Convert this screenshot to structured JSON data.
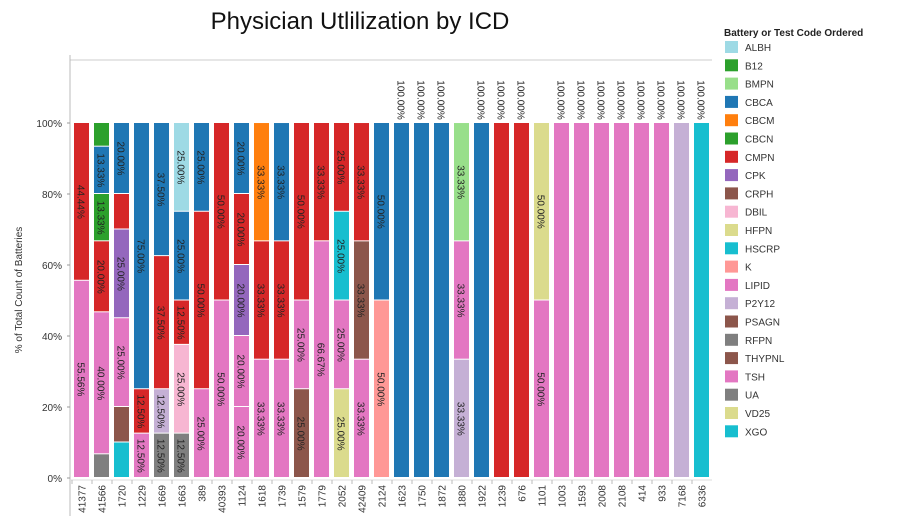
{
  "chart_data": {
    "type": "bar",
    "stacked": true,
    "title": "Physician Utlilization by ICD",
    "xlabel": "",
    "ylabel": "% of Total Count of Batteries",
    "ylim": [
      0,
      100
    ],
    "yticks": [
      "0%",
      "20%",
      "40%",
      "60%",
      "80%",
      "100%"
    ],
    "grid": false,
    "legend": {
      "title": "Battery or Test Code Ordered",
      "placement": "right",
      "items": [
        {
          "code": "ALBH",
          "color": "#9edae5"
        },
        {
          "code": "B12",
          "color": "#2ca02c"
        },
        {
          "code": "BMPN",
          "color": "#98df8a"
        },
        {
          "code": "CBCA",
          "color": "#1f77b4"
        },
        {
          "code": "CBCM",
          "color": "#ff7f0e"
        },
        {
          "code": "CBCN",
          "color": "#2ca02c"
        },
        {
          "code": "CMPN",
          "color": "#d62728"
        },
        {
          "code": "CPK",
          "color": "#9467bd"
        },
        {
          "code": "CRPH",
          "color": "#8c564b"
        },
        {
          "code": "DBIL",
          "color": "#f7b6d2"
        },
        {
          "code": "HFPN",
          "color": "#dbdb8d"
        },
        {
          "code": "HSCRP",
          "color": "#17becf"
        },
        {
          "code": "K",
          "color": "#ff9896"
        },
        {
          "code": "LIPID",
          "color": "#e377c2"
        },
        {
          "code": "P2Y12",
          "color": "#c5b0d5"
        },
        {
          "code": "PSAGN",
          "color": "#8c564b"
        },
        {
          "code": "RFPN",
          "color": "#7f7f7f"
        },
        {
          "code": "THYPNL",
          "color": "#8c564b"
        },
        {
          "code": "TSH",
          "color": "#e377c2"
        },
        {
          "code": "UA",
          "color": "#7f7f7f"
        },
        {
          "code": "VD25",
          "color": "#dbdb8d"
        },
        {
          "code": "XGO",
          "color": "#17becf"
        }
      ]
    },
    "bars": [
      {
        "category": "41377",
        "segments": [
          {
            "code": "TSH",
            "pct": 55.56
          },
          {
            "code": "CMPN",
            "pct": 44.44
          }
        ]
      },
      {
        "category": "41566",
        "segments": [
          {
            "code": "UA",
            "pct": 6.67
          },
          {
            "code": "TSH",
            "pct": 40.0
          },
          {
            "code": "CMPN",
            "pct": 20.0
          },
          {
            "code": "CBCN",
            "pct": 13.33
          },
          {
            "code": "CBCA",
            "pct": 13.33
          },
          {
            "code": "B12",
            "pct": 6.67
          }
        ]
      },
      {
        "category": "1720",
        "segments": [
          {
            "code": "XGO",
            "pct": 10.0
          },
          {
            "code": "THYPNL",
            "pct": 10.0
          },
          {
            "code": "TSH",
            "pct": 25.0
          },
          {
            "code": "CPK",
            "pct": 25.0
          },
          {
            "code": "CMPN",
            "pct": 10.0
          },
          {
            "code": "CBCA",
            "pct": 20.0
          }
        ]
      },
      {
        "category": "1229",
        "segments": [
          {
            "code": "TSH",
            "pct": 12.5
          },
          {
            "code": "CMPN",
            "pct": 12.5
          },
          {
            "code": "CBCA",
            "pct": 75.0
          }
        ]
      },
      {
        "category": "1669",
        "segments": [
          {
            "code": "UA",
            "pct": 12.5
          },
          {
            "code": "P2Y12",
            "pct": 12.5
          },
          {
            "code": "CMPN",
            "pct": 37.5
          },
          {
            "code": "CBCA",
            "pct": 37.5
          }
        ]
      },
      {
        "category": "1663",
        "segments": [
          {
            "code": "UA",
            "pct": 12.5
          },
          {
            "code": "DBIL",
            "pct": 25.0
          },
          {
            "code": "CMPN",
            "pct": 12.5
          },
          {
            "code": "CBCA",
            "pct": 25.0
          },
          {
            "code": "ALBH",
            "pct": 25.0
          }
        ]
      },
      {
        "category": "389",
        "segments": [
          {
            "code": "TSH",
            "pct": 25.0
          },
          {
            "code": "CMPN",
            "pct": 50.0
          },
          {
            "code": "CBCA",
            "pct": 25.0
          }
        ]
      },
      {
        "category": "40393",
        "segments": [
          {
            "code": "TSH",
            "pct": 50.0
          },
          {
            "code": "CMPN",
            "pct": 50.0
          }
        ]
      },
      {
        "category": "1124",
        "segments": [
          {
            "code": "TSH",
            "pct": 20.0
          },
          {
            "code": "LIPID",
            "pct": 20.0
          },
          {
            "code": "CPK",
            "pct": 20.0
          },
          {
            "code": "CMPN",
            "pct": 20.0
          },
          {
            "code": "CBCA",
            "pct": 20.0
          }
        ]
      },
      {
        "category": "1618",
        "segments": [
          {
            "code": "TSH",
            "pct": 33.33
          },
          {
            "code": "CMPN",
            "pct": 33.33
          },
          {
            "code": "CBCM",
            "pct": 33.33
          }
        ]
      },
      {
        "category": "1739",
        "segments": [
          {
            "code": "TSH",
            "pct": 33.33
          },
          {
            "code": "CMPN",
            "pct": 33.33
          },
          {
            "code": "CBCA",
            "pct": 33.33
          }
        ]
      },
      {
        "category": "1579",
        "segments": [
          {
            "code": "PSAGN",
            "pct": 25.0
          },
          {
            "code": "TSH",
            "pct": 25.0
          },
          {
            "code": "CMPN",
            "pct": 50.0
          }
        ]
      },
      {
        "category": "1779",
        "segments": [
          {
            "code": "TSH",
            "pct": 66.67
          },
          {
            "code": "CMPN",
            "pct": 33.33
          }
        ]
      },
      {
        "category": "2052",
        "segments": [
          {
            "code": "VD25",
            "pct": 25.0
          },
          {
            "code": "TSH",
            "pct": 25.0
          },
          {
            "code": "HSCRP",
            "pct": 25.0
          },
          {
            "code": "CMPN",
            "pct": 25.0
          }
        ]
      },
      {
        "category": "42409",
        "segments": [
          {
            "code": "TSH",
            "pct": 33.33
          },
          {
            "code": "CRPH",
            "pct": 33.33
          },
          {
            "code": "CMPN",
            "pct": 33.33
          }
        ]
      },
      {
        "category": "2124",
        "segments": [
          {
            "code": "K",
            "pct": 50.0
          },
          {
            "code": "CBCA",
            "pct": 50.0
          }
        ]
      },
      {
        "category": "1623",
        "segments": [
          {
            "code": "CBCA",
            "pct": 100.0
          }
        ]
      },
      {
        "category": "1750",
        "segments": [
          {
            "code": "CBCA",
            "pct": 100.0
          }
        ]
      },
      {
        "category": "1872",
        "segments": [
          {
            "code": "CBCA",
            "pct": 100.0
          }
        ]
      },
      {
        "category": "1880",
        "segments": [
          {
            "code": "P2Y12",
            "pct": 33.33
          },
          {
            "code": "TSH",
            "pct": 33.33
          },
          {
            "code": "BMPN",
            "pct": 33.33
          }
        ]
      },
      {
        "category": "1922",
        "segments": [
          {
            "code": "CBCA",
            "pct": 100.0
          }
        ]
      },
      {
        "category": "1239",
        "segments": [
          {
            "code": "CMPN",
            "pct": 100.0
          }
        ]
      },
      {
        "category": "676",
        "segments": [
          {
            "code": "CMPN",
            "pct": 100.0
          }
        ]
      },
      {
        "category": "1101",
        "segments": [
          {
            "code": "TSH",
            "pct": 50.0
          },
          {
            "code": "HFPN",
            "pct": 50.0
          }
        ]
      },
      {
        "category": "1003",
        "segments": [
          {
            "code": "TSH",
            "pct": 100.0
          }
        ]
      },
      {
        "category": "1593",
        "segments": [
          {
            "code": "TSH",
            "pct": 100.0
          }
        ]
      },
      {
        "category": "2008",
        "segments": [
          {
            "code": "TSH",
            "pct": 100.0
          }
        ]
      },
      {
        "category": "2108",
        "segments": [
          {
            "code": "TSH",
            "pct": 100.0
          }
        ]
      },
      {
        "category": "414",
        "segments": [
          {
            "code": "TSH",
            "pct": 100.0
          }
        ]
      },
      {
        "category": "933",
        "segments": [
          {
            "code": "TSH",
            "pct": 100.0
          }
        ]
      },
      {
        "category": "7168",
        "segments": [
          {
            "code": "P2Y12",
            "pct": 100.0
          }
        ]
      },
      {
        "category": "6336",
        "segments": [
          {
            "code": "XGO",
            "pct": 100.0
          }
        ]
      }
    ]
  }
}
